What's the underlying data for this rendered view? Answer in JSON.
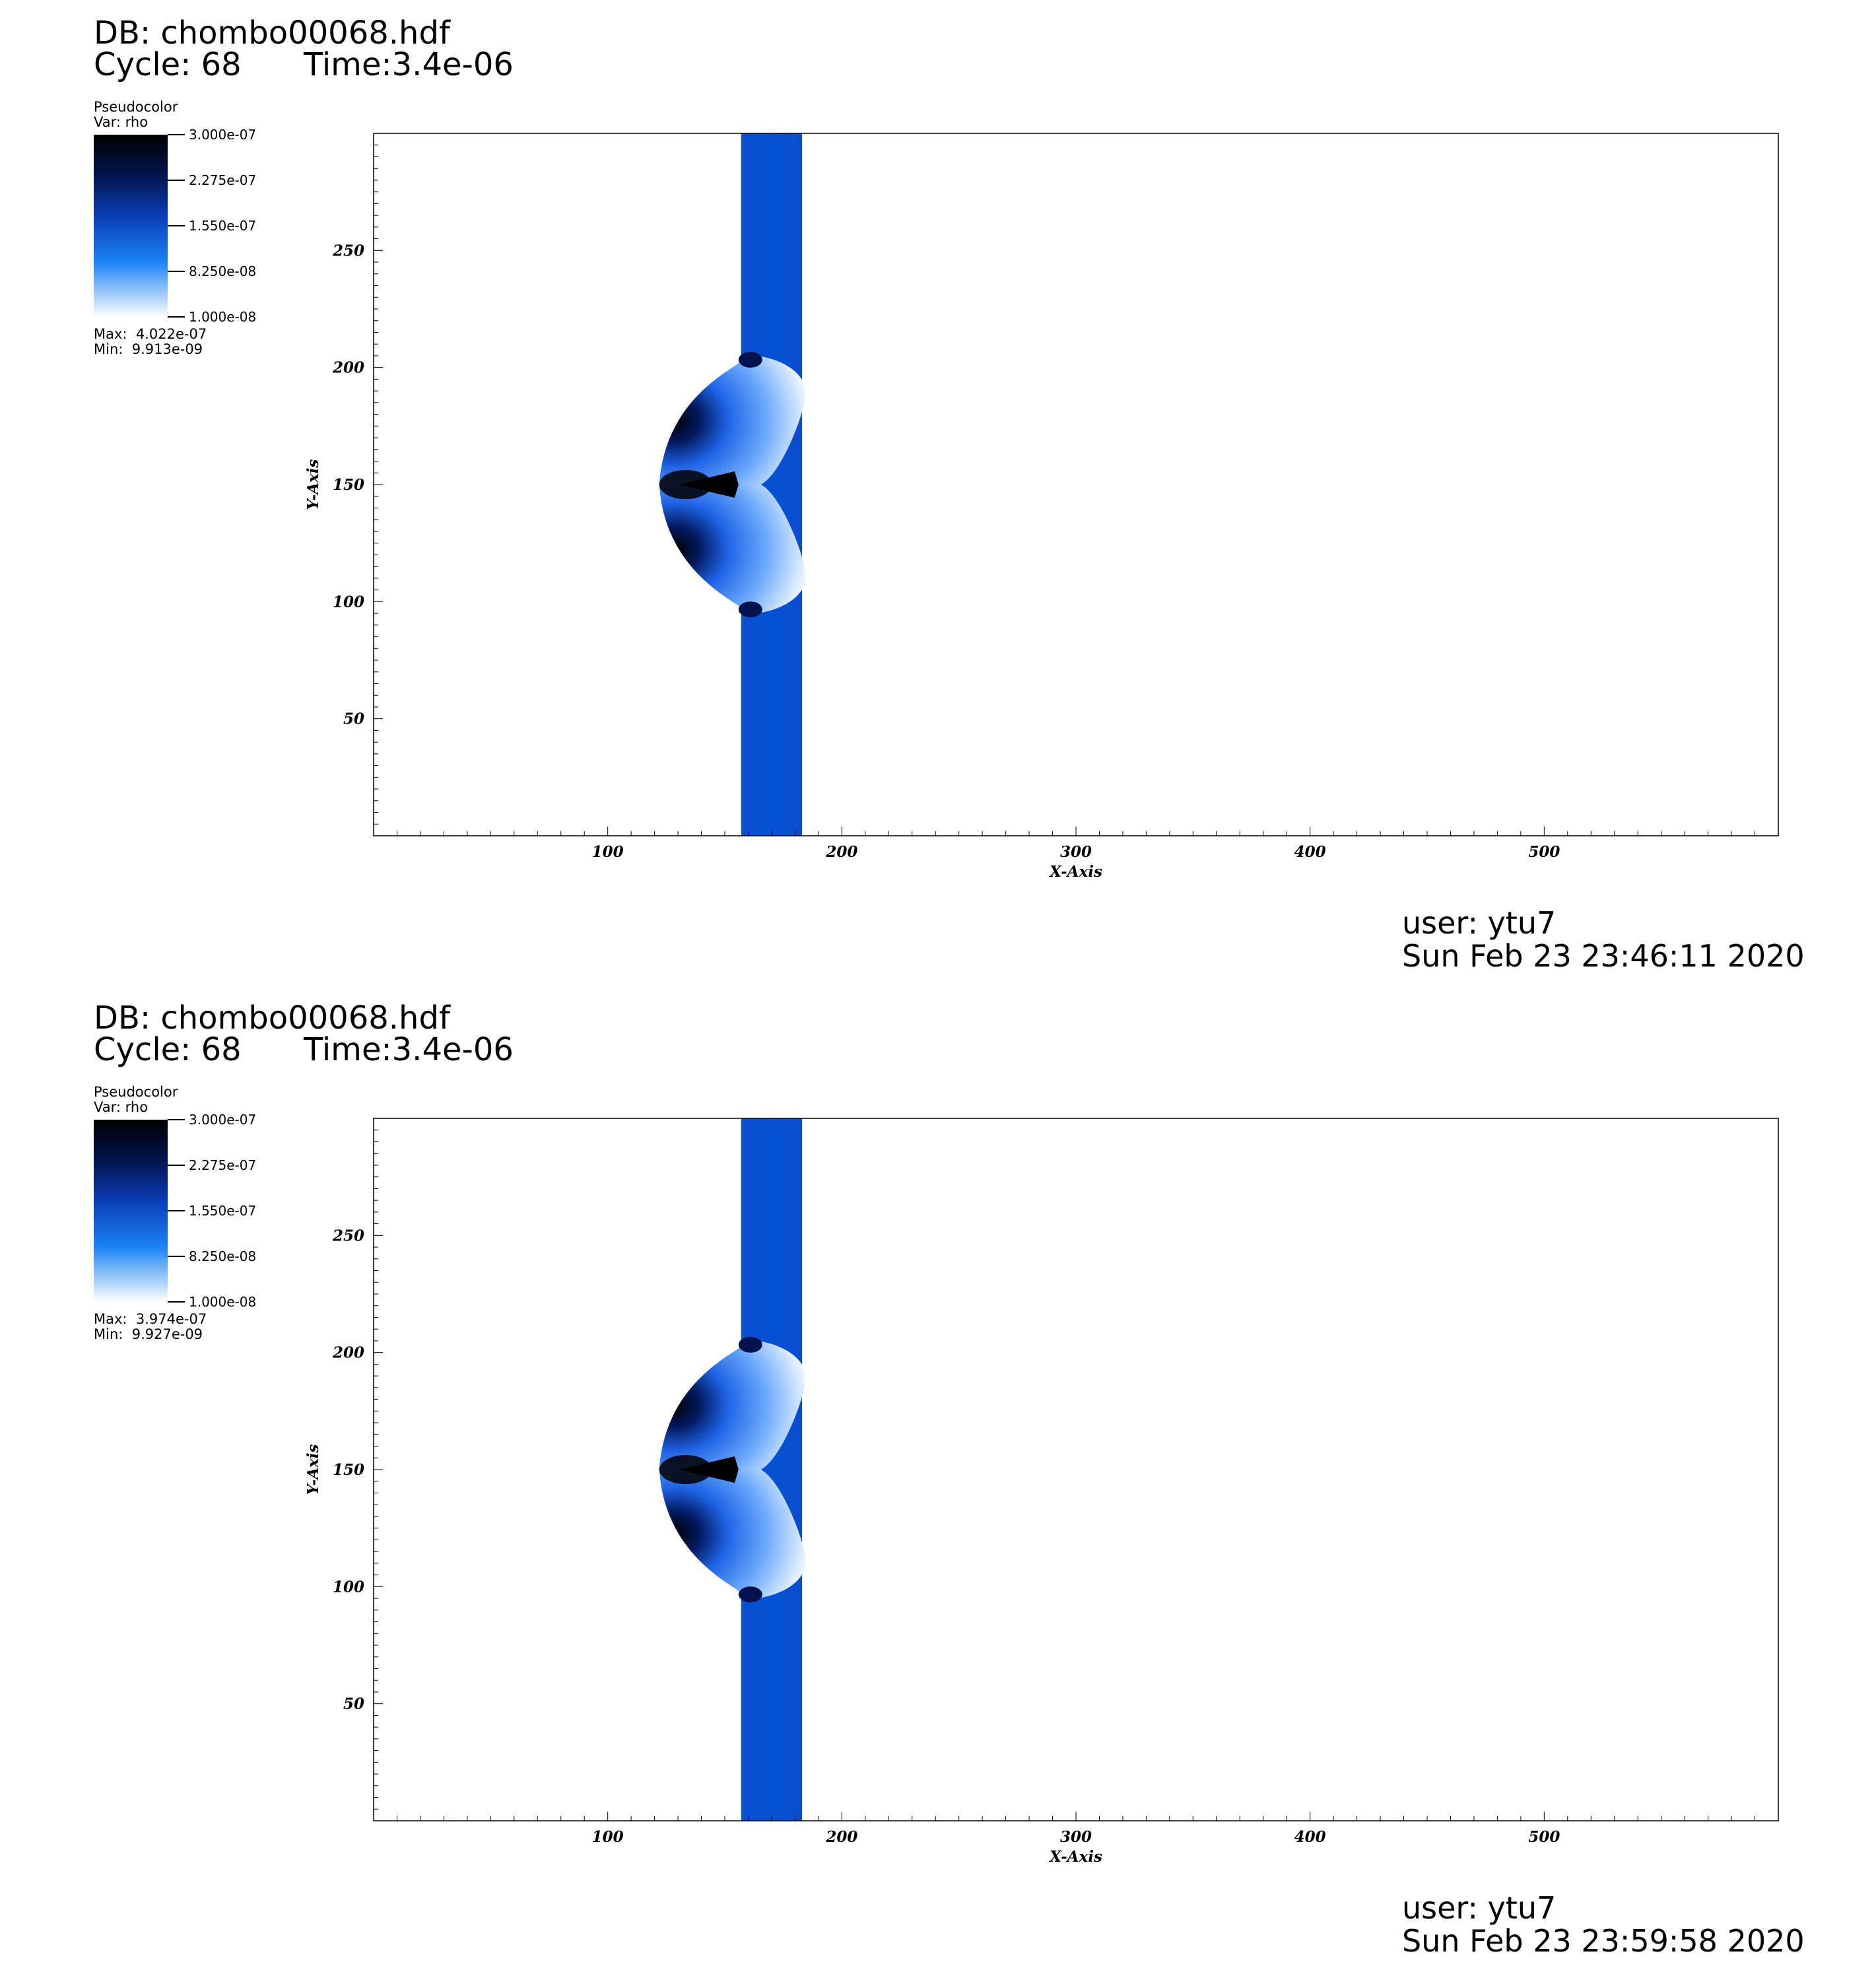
{
  "panels": [
    {
      "db_label": "DB: chombo00068.hdf",
      "cycle_label": "Cycle: 68",
      "time_label": "Time:3.4e-06",
      "legend": {
        "title": "Pseudocolor",
        "var": "Var: rho",
        "ticks": [
          "3.000e-07",
          "2.275e-07",
          "1.550e-07",
          "8.250e-08",
          "1.000e-08"
        ],
        "max_label": "Max:",
        "max_value": "4.022e-07",
        "min_label": "Min:",
        "min_value": "9.913e-09"
      },
      "user": "user: ytu7",
      "date": "Sun Feb 23 23:46:11 2020"
    },
    {
      "db_label": "DB: chombo00068.hdf",
      "cycle_label": "Cycle: 68",
      "time_label": "Time:3.4e-06",
      "legend": {
        "title": "Pseudocolor",
        "var": "Var: rho",
        "ticks": [
          "3.000e-07",
          "2.275e-07",
          "1.550e-07",
          "8.250e-08",
          "1.000e-08"
        ],
        "max_label": "Max:",
        "max_value": "3.974e-07",
        "min_label": "Min:",
        "min_value": "9.927e-09"
      },
      "user": "user: ytu7",
      "date": "Sun Feb 23 23:59:58 2020"
    }
  ],
  "chart_data": [
    {
      "type": "heatmap",
      "variable": "rho",
      "xlabel": "X-Axis",
      "ylabel": "Y-Axis",
      "xlim": [
        0,
        600
      ],
      "ylim": [
        0,
        300
      ],
      "xticks": [
        100,
        200,
        300,
        400,
        500
      ],
      "yticks": [
        50,
        100,
        150,
        200,
        250
      ],
      "colorbar_range": [
        1e-08,
        3e-07
      ],
      "data_max": 4.022e-07,
      "data_min": 9.913e-09,
      "features": {
        "shock_band_x": [
          157,
          183
        ],
        "bow_center_y": 150,
        "bow_y_extent": [
          95,
          205
        ],
        "bow_leading_x": 122,
        "background_density": 1e-08,
        "band_density": 1.2e-07
      },
      "colors": {
        "band": "#0452d4",
        "dense": "#000000",
        "light": "#ffffff"
      }
    },
    {
      "type": "heatmap",
      "variable": "rho",
      "xlabel": "X-Axis",
      "ylabel": "Y-Axis",
      "xlim": [
        0,
        600
      ],
      "ylim": [
        0,
        300
      ],
      "xticks": [
        100,
        200,
        300,
        400,
        500
      ],
      "yticks": [
        50,
        100,
        150,
        200,
        250
      ],
      "colorbar_range": [
        1e-08,
        3e-07
      ],
      "data_max": 3.974e-07,
      "data_min": 9.927e-09,
      "features": {
        "shock_band_x": [
          157,
          183
        ],
        "bow_center_y": 150,
        "bow_y_extent": [
          95,
          205
        ],
        "bow_leading_x": 122,
        "background_density": 1e-08,
        "band_density": 1.2e-07
      },
      "colors": {
        "band": "#0452d4",
        "dense": "#000000",
        "light": "#ffffff"
      }
    }
  ]
}
